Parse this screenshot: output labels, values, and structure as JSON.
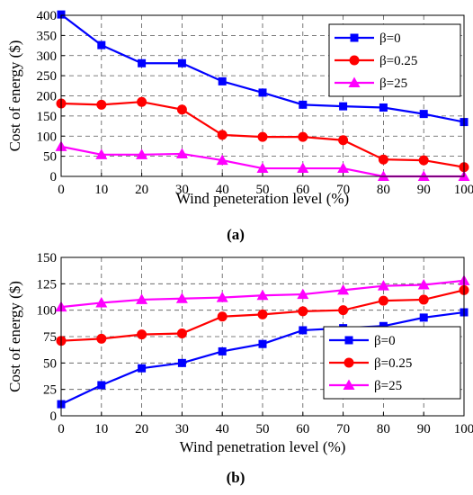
{
  "chart_data": [
    {
      "type": "line",
      "caption": "(a)",
      "xlabel": "Wind peneteration level (%)",
      "ylabel": "Cost of energy ($)",
      "x": [
        0,
        10,
        20,
        30,
        40,
        50,
        60,
        70,
        80,
        90,
        100
      ],
      "xlim": [
        0,
        100
      ],
      "ylim": [
        0,
        400
      ],
      "xticks": [
        0,
        10,
        20,
        30,
        40,
        50,
        60,
        70,
        80,
        90,
        100
      ],
      "yticks": [
        0,
        50,
        100,
        150,
        200,
        250,
        300,
        350,
        400
      ],
      "grid": true,
      "legend_position": "top-right",
      "series": [
        {
          "name": "β=0",
          "color": "#0000ff",
          "marker": "square",
          "values": [
            402,
            326,
            281,
            281,
            236,
            208,
            178,
            174,
            171,
            155,
            135
          ]
        },
        {
          "name": "β=0.25",
          "color": "#ff0000",
          "marker": "circle",
          "values": [
            181,
            178,
            185,
            166,
            103,
            98,
            98,
            90,
            42,
            40,
            23
          ]
        },
        {
          "name": "β=25",
          "color": "#ff00ff",
          "marker": "triangle",
          "values": [
            74,
            54,
            54,
            56,
            40,
            20,
            20,
            20,
            0,
            0,
            0
          ]
        }
      ]
    },
    {
      "type": "line",
      "caption": "(b)",
      "xlabel": "Wind penetration level (%)",
      "ylabel": "Cost of energy ($)",
      "x": [
        0,
        10,
        20,
        30,
        40,
        50,
        60,
        70,
        80,
        90,
        100
      ],
      "xlim": [
        0,
        100
      ],
      "ylim": [
        0,
        150
      ],
      "xticks": [
        0,
        10,
        20,
        30,
        40,
        50,
        60,
        70,
        80,
        90,
        100
      ],
      "yticks": [
        0,
        25,
        50,
        75,
        100,
        125,
        150
      ],
      "grid": true,
      "legend_position": "bottom-right",
      "series": [
        {
          "name": "β=0",
          "color": "#0000ff",
          "marker": "square",
          "values": [
            11,
            29,
            45,
            50,
            61,
            68,
            81,
            83,
            85,
            93,
            98
          ]
        },
        {
          "name": "β=0.25",
          "color": "#ff0000",
          "marker": "circle",
          "values": [
            71,
            73,
            77,
            78,
            94,
            96,
            99,
            100,
            109,
            110,
            119
          ]
        },
        {
          "name": "β=25",
          "color": "#ff00ff",
          "marker": "triangle",
          "values": [
            103,
            107,
            110,
            111,
            112,
            114,
            115,
            119,
            123,
            124,
            128
          ]
        }
      ]
    }
  ]
}
